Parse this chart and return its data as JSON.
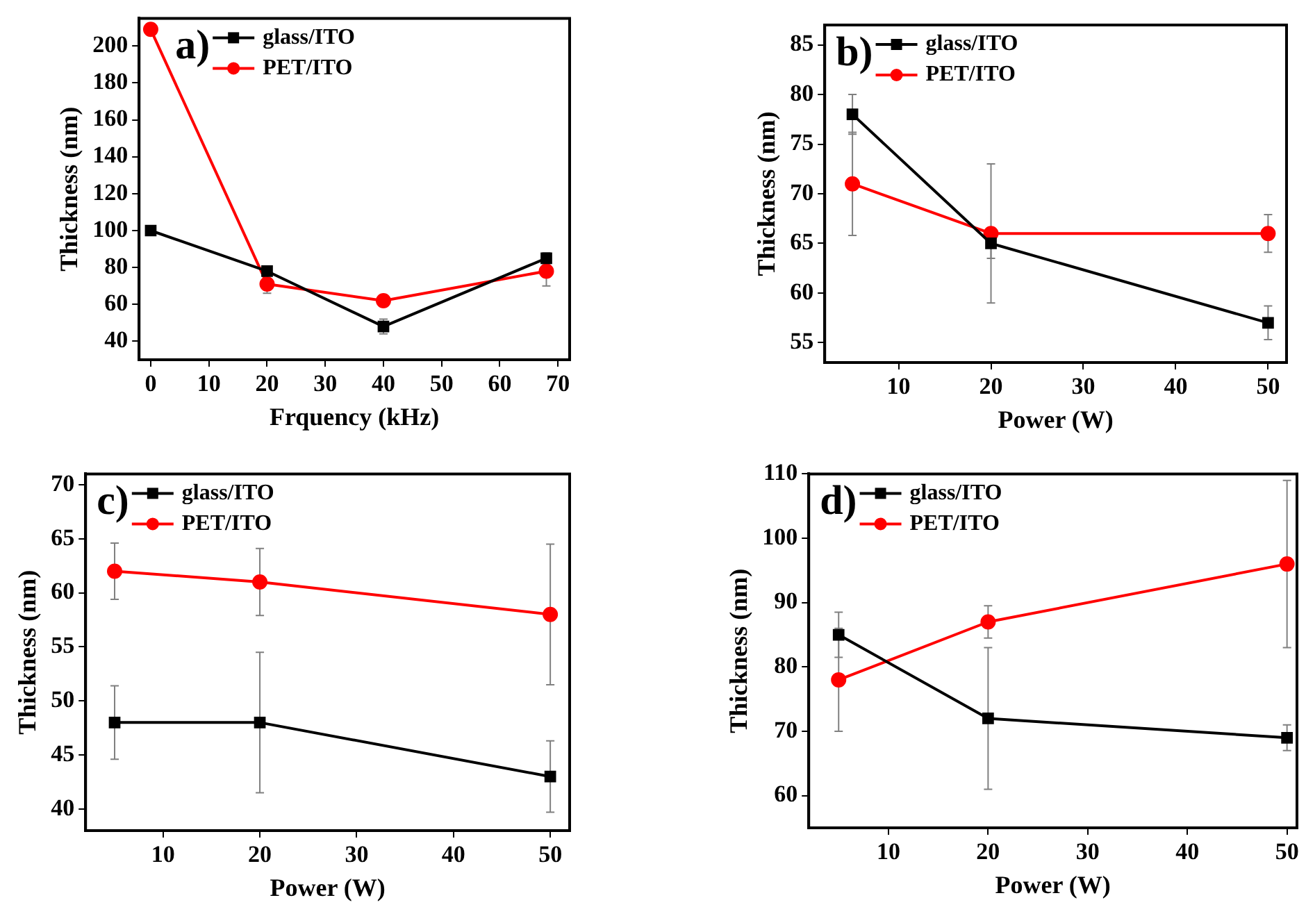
{
  "chart_data": [
    {
      "type": "line",
      "xlabel": "Frquency (kHz)",
      "ylabel": "Thickness (nm)",
      "annotations": [
        "a)"
      ],
      "x": [
        0,
        20,
        40,
        68
      ],
      "xlim": [
        -2,
        72
      ],
      "xticks": [
        0,
        10,
        20,
        30,
        40,
        50,
        60,
        70
      ],
      "ylim": [
        30,
        215
      ],
      "yticks": [
        40,
        60,
        80,
        100,
        120,
        140,
        160,
        180,
        200
      ],
      "grid": false,
      "legend": "top left",
      "line_style": "solid",
      "series": [
        {
          "name": "glass/ITO",
          "color": "#000000",
          "marker": "square",
          "values": [
            100,
            78,
            48,
            85
          ],
          "errors": [
            null,
            null,
            4,
            3
          ]
        },
        {
          "name": "PET/ITO",
          "color": "#ff0000",
          "marker": "circle",
          "values": [
            209,
            71,
            62,
            78
          ],
          "errors": [
            null,
            5,
            null,
            8
          ]
        }
      ]
    },
    {
      "type": "line",
      "xlabel": "Power (W)",
      "ylabel": "Thickness (nm)",
      "annotations": [
        "b)"
      ],
      "x": [
        5,
        20,
        50
      ],
      "xlim": [
        2,
        52
      ],
      "xticks": [
        10,
        20,
        30,
        40,
        50
      ],
      "ylim": [
        53,
        87
      ],
      "yticks": [
        55,
        60,
        65,
        70,
        75,
        80,
        85
      ],
      "grid": false,
      "legend": "top left",
      "line_style": "solid",
      "series": [
        {
          "name": "glass/ITO",
          "color": "#000000",
          "marker": "square",
          "values": [
            78,
            65,
            57
          ],
          "errors": [
            2,
            1.5,
            1.7
          ]
        },
        {
          "name": "PET/ITO",
          "color": "#ff0000",
          "marker": "circle",
          "values": [
            71,
            66,
            66
          ],
          "errors": [
            5.2,
            7,
            1.9
          ]
        }
      ]
    },
    {
      "type": "line",
      "xlabel": "Power (W)",
      "ylabel": "Thickness (nm)",
      "annotations": [
        "c)"
      ],
      "x": [
        5,
        20,
        50
      ],
      "xlim": [
        2,
        52
      ],
      "xticks": [
        10,
        20,
        30,
        40,
        50
      ],
      "ylim": [
        38,
        71
      ],
      "yticks": [
        40,
        45,
        50,
        55,
        60,
        65,
        70
      ],
      "grid": false,
      "legend": "top left",
      "line_style": "solid",
      "series": [
        {
          "name": "glass/ITO",
          "color": "#000000",
          "marker": "square",
          "values": [
            48,
            48,
            43
          ],
          "errors": [
            3.4,
            6.5,
            3.3
          ]
        },
        {
          "name": "PET/ITO",
          "color": "#ff0000",
          "marker": "circle",
          "values": [
            62,
            61,
            58
          ],
          "errors": [
            2.6,
            3.1,
            6.5
          ]
        }
      ]
    },
    {
      "type": "line",
      "xlabel": "Power (W)",
      "ylabel": "Thickness (nm)",
      "annotations": [
        "d)"
      ],
      "x": [
        5,
        20,
        50
      ],
      "xlim": [
        2,
        51
      ],
      "xticks": [
        10,
        20,
        30,
        40,
        50
      ],
      "ylim": [
        55,
        110
      ],
      "yticks": [
        60,
        70,
        80,
        90,
        100,
        110
      ],
      "grid": false,
      "legend": "top left",
      "line_style": "solid",
      "series": [
        {
          "name": "glass/ITO",
          "color": "#000000",
          "marker": "square",
          "values": [
            85,
            72,
            69
          ],
          "errors": [
            3.5,
            11,
            2
          ]
        },
        {
          "name": "PET/ITO",
          "color": "#ff0000",
          "marker": "circle",
          "values": [
            78,
            87,
            96
          ],
          "errors": [
            8,
            2.5,
            13
          ]
        }
      ]
    }
  ]
}
